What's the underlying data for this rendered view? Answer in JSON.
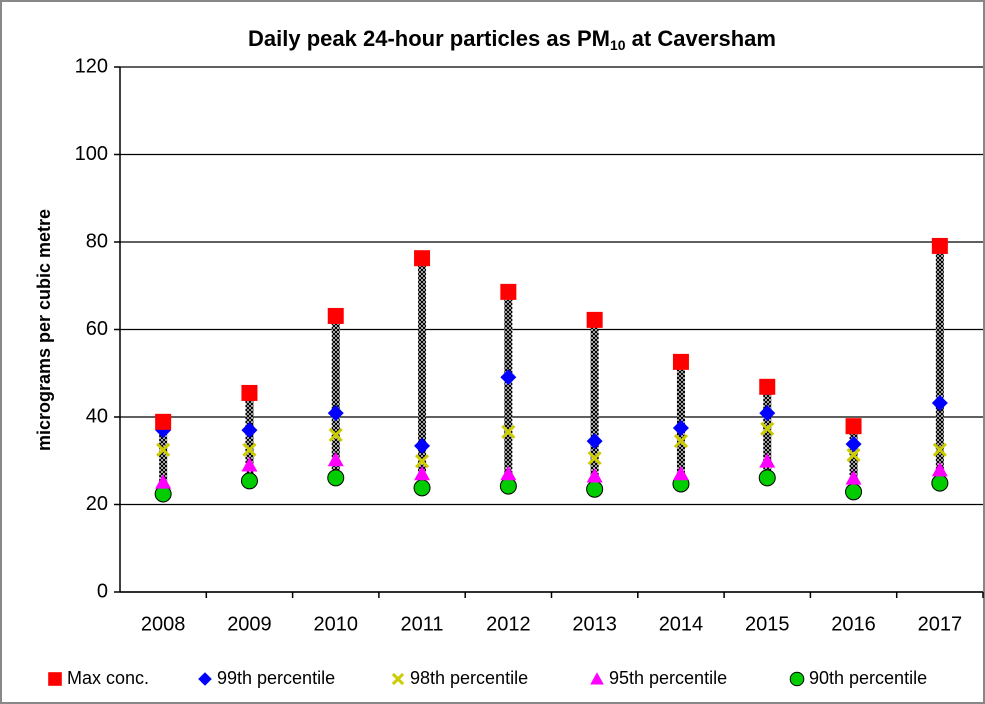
{
  "chart_data": {
    "type": "dot",
    "title": "Daily peak 24-hour particles as PM",
    "title_subscript": "10",
    "title_suffix": " at Caversham",
    "y_label": "micrograms per cubic metre",
    "categories": [
      "2008",
      "2009",
      "2010",
      "2011",
      "2012",
      "2013",
      "2014",
      "2015",
      "2016",
      "2017"
    ],
    "series": [
      {
        "name": "Max conc.",
        "color": "#ff0000",
        "marker": "square",
        "values": [
          38.9,
          45.5,
          63.1,
          76.3,
          68.6,
          62.2,
          52.6,
          46.9,
          37.9,
          79.1
        ]
      },
      {
        "name": "99th percentile",
        "color": "#0000ff",
        "marker": "diamond",
        "values": [
          37,
          37,
          40.9,
          33.4,
          49.1,
          34.5,
          37.5,
          40.9,
          33.8,
          43.2
        ]
      },
      {
        "name": "98th percentile",
        "color": "#cccc00",
        "marker": "x",
        "values": [
          32.5,
          32.5,
          35.9,
          29.9,
          36.6,
          30.6,
          34.5,
          37.3,
          31.3,
          32.5
        ]
      },
      {
        "name": "95th percentile",
        "color": "#ff00ff",
        "marker": "triangle",
        "values": [
          25.1,
          29,
          30.2,
          27,
          27,
          26.5,
          27,
          29.9,
          26,
          27.9
        ]
      },
      {
        "name": "90th percentile",
        "color": "#00cc00",
        "marker": "circle",
        "values": [
          22.4,
          25.4,
          26.1,
          23.8,
          24.2,
          23.5,
          24.7,
          26.1,
          22.9,
          24.9
        ]
      }
    ],
    "high_low_lines": true,
    "ylim": [
      0,
      120
    ],
    "yticks": [
      0,
      20,
      40,
      60,
      80,
      100,
      120
    ],
    "grid": true,
    "legend": "bottom"
  }
}
